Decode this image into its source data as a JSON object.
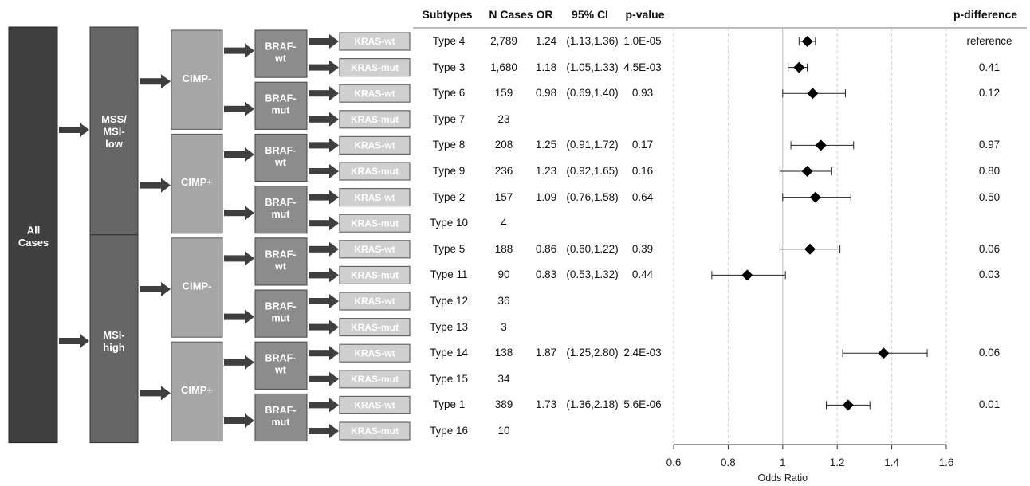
{
  "tree": {
    "root": "All\nCases",
    "msi_groups": [
      {
        "label": "MSS/\nMSI-\nlow"
      },
      {
        "label": "MSI-\nhigh"
      }
    ],
    "cimp_labels": [
      "CIMP-",
      "CIMP+",
      "CIMP-",
      "CIMP+"
    ],
    "braf_labels": [
      "BRAF-\nwt",
      "BRAF-\nmut",
      "BRAF-\nwt",
      "BRAF-\nmut",
      "BRAF-\nwt",
      "BRAF-\nmut",
      "BRAF-\nwt",
      "BRAF-\nmut"
    ],
    "kras_labels": [
      "KRAS-wt",
      "KRAS-mut"
    ]
  },
  "table": {
    "headers": {
      "subtypes": "Subtypes",
      "n_cases": "N Cases",
      "or": "OR",
      "ci": "95% CI",
      "pvalue": "p-value",
      "pdiff": "p-difference"
    },
    "rows": [
      {
        "subtype": "Type 4",
        "n": "2,789",
        "or": "1.24",
        "ci": "(1.13,1.36)",
        "p": "1.0E-05",
        "pdiff": "reference"
      },
      {
        "subtype": "Type 3",
        "n": "1,680",
        "or": "1.18",
        "ci": "(1.05,1.33)",
        "p": "4.5E-03",
        "pdiff": "0.41"
      },
      {
        "subtype": "Type 6",
        "n": "159",
        "or": "0.98",
        "ci": "(0.69,1.40)",
        "p": "0.93",
        "pdiff": "0.12"
      },
      {
        "subtype": "Type 7",
        "n": "23",
        "or": "",
        "ci": "",
        "p": "",
        "pdiff": ""
      },
      {
        "subtype": "Type 8",
        "n": "208",
        "or": "1.25",
        "ci": "(0.91,1.72)",
        "p": "0.17",
        "pdiff": "0.97"
      },
      {
        "subtype": "Type 9",
        "n": "236",
        "or": "1.23",
        "ci": "(0.92,1.65)",
        "p": "0.16",
        "pdiff": "0.80"
      },
      {
        "subtype": "Type 2",
        "n": "157",
        "or": "1.09",
        "ci": "(0.76,1.58)",
        "p": "0.64",
        "pdiff": "0.50"
      },
      {
        "subtype": "Type 10",
        "n": "4",
        "or": "",
        "ci": "",
        "p": "",
        "pdiff": ""
      },
      {
        "subtype": "Type 5",
        "n": "188",
        "or": "0.86",
        "ci": "(0.60,1.22)",
        "p": "0.39",
        "pdiff": "0.06"
      },
      {
        "subtype": "Type 11",
        "n": "90",
        "or": "0.83",
        "ci": "(0.53,1.32)",
        "p": "0.44",
        "pdiff": "0.03"
      },
      {
        "subtype": "Type 12",
        "n": "36",
        "or": "",
        "ci": "",
        "p": "",
        "pdiff": ""
      },
      {
        "subtype": "Type 13",
        "n": "3",
        "or": "",
        "ci": "",
        "p": "",
        "pdiff": ""
      },
      {
        "subtype": "Type 14",
        "n": "138",
        "or": "1.87",
        "ci": "(1.25,2.80)",
        "p": "2.4E-03",
        "pdiff": "0.06"
      },
      {
        "subtype": "Type 15",
        "n": "34",
        "or": "",
        "ci": "",
        "p": "",
        "pdiff": ""
      },
      {
        "subtype": "Type 1",
        "n": "389",
        "or": "1.73",
        "ci": "(1.36,2.18)",
        "p": "5.6E-06",
        "pdiff": "0.01"
      },
      {
        "subtype": "Type 16",
        "n": "10",
        "or": "",
        "ci": "",
        "p": "",
        "pdiff": ""
      }
    ]
  },
  "chart_data": {
    "type": "scatter",
    "xlabel": "Odds Ratio",
    "xlim": [
      0.6,
      1.6
    ],
    "xticks": [
      0.6,
      0.8,
      1,
      1.2,
      1.4,
      1.6
    ],
    "xtick_labels": [
      "0.6",
      "0.8",
      "1",
      "1.2",
      "1.4",
      "1.6"
    ],
    "reference_line": 1,
    "grid": "vertical dashed",
    "points": [
      {
        "row": 0,
        "x": 1.09,
        "lo": 1.06,
        "hi": 1.12
      },
      {
        "row": 1,
        "x": 1.06,
        "lo": 1.02,
        "hi": 1.09
      },
      {
        "row": 2,
        "x": 1.11,
        "lo": 1.0,
        "hi": 1.23
      },
      {
        "row": 4,
        "x": 1.14,
        "lo": 1.03,
        "hi": 1.26
      },
      {
        "row": 5,
        "x": 1.09,
        "lo": 0.99,
        "hi": 1.18
      },
      {
        "row": 6,
        "x": 1.12,
        "lo": 1.0,
        "hi": 1.25
      },
      {
        "row": 8,
        "x": 1.1,
        "lo": 0.99,
        "hi": 1.21
      },
      {
        "row": 9,
        "x": 0.87,
        "lo": 0.74,
        "hi": 1.01
      },
      {
        "row": 12,
        "x": 1.37,
        "lo": 1.22,
        "hi": 1.53
      },
      {
        "row": 14,
        "x": 1.24,
        "lo": 1.16,
        "hi": 1.32
      }
    ]
  },
  "colors": {
    "root": "#3f3f3f",
    "msi": "#666666",
    "cimp": "#a6a6a6",
    "braf": "#8c8c8c",
    "kras": "#cfcfcf",
    "arrow": "#3f3f3f"
  }
}
